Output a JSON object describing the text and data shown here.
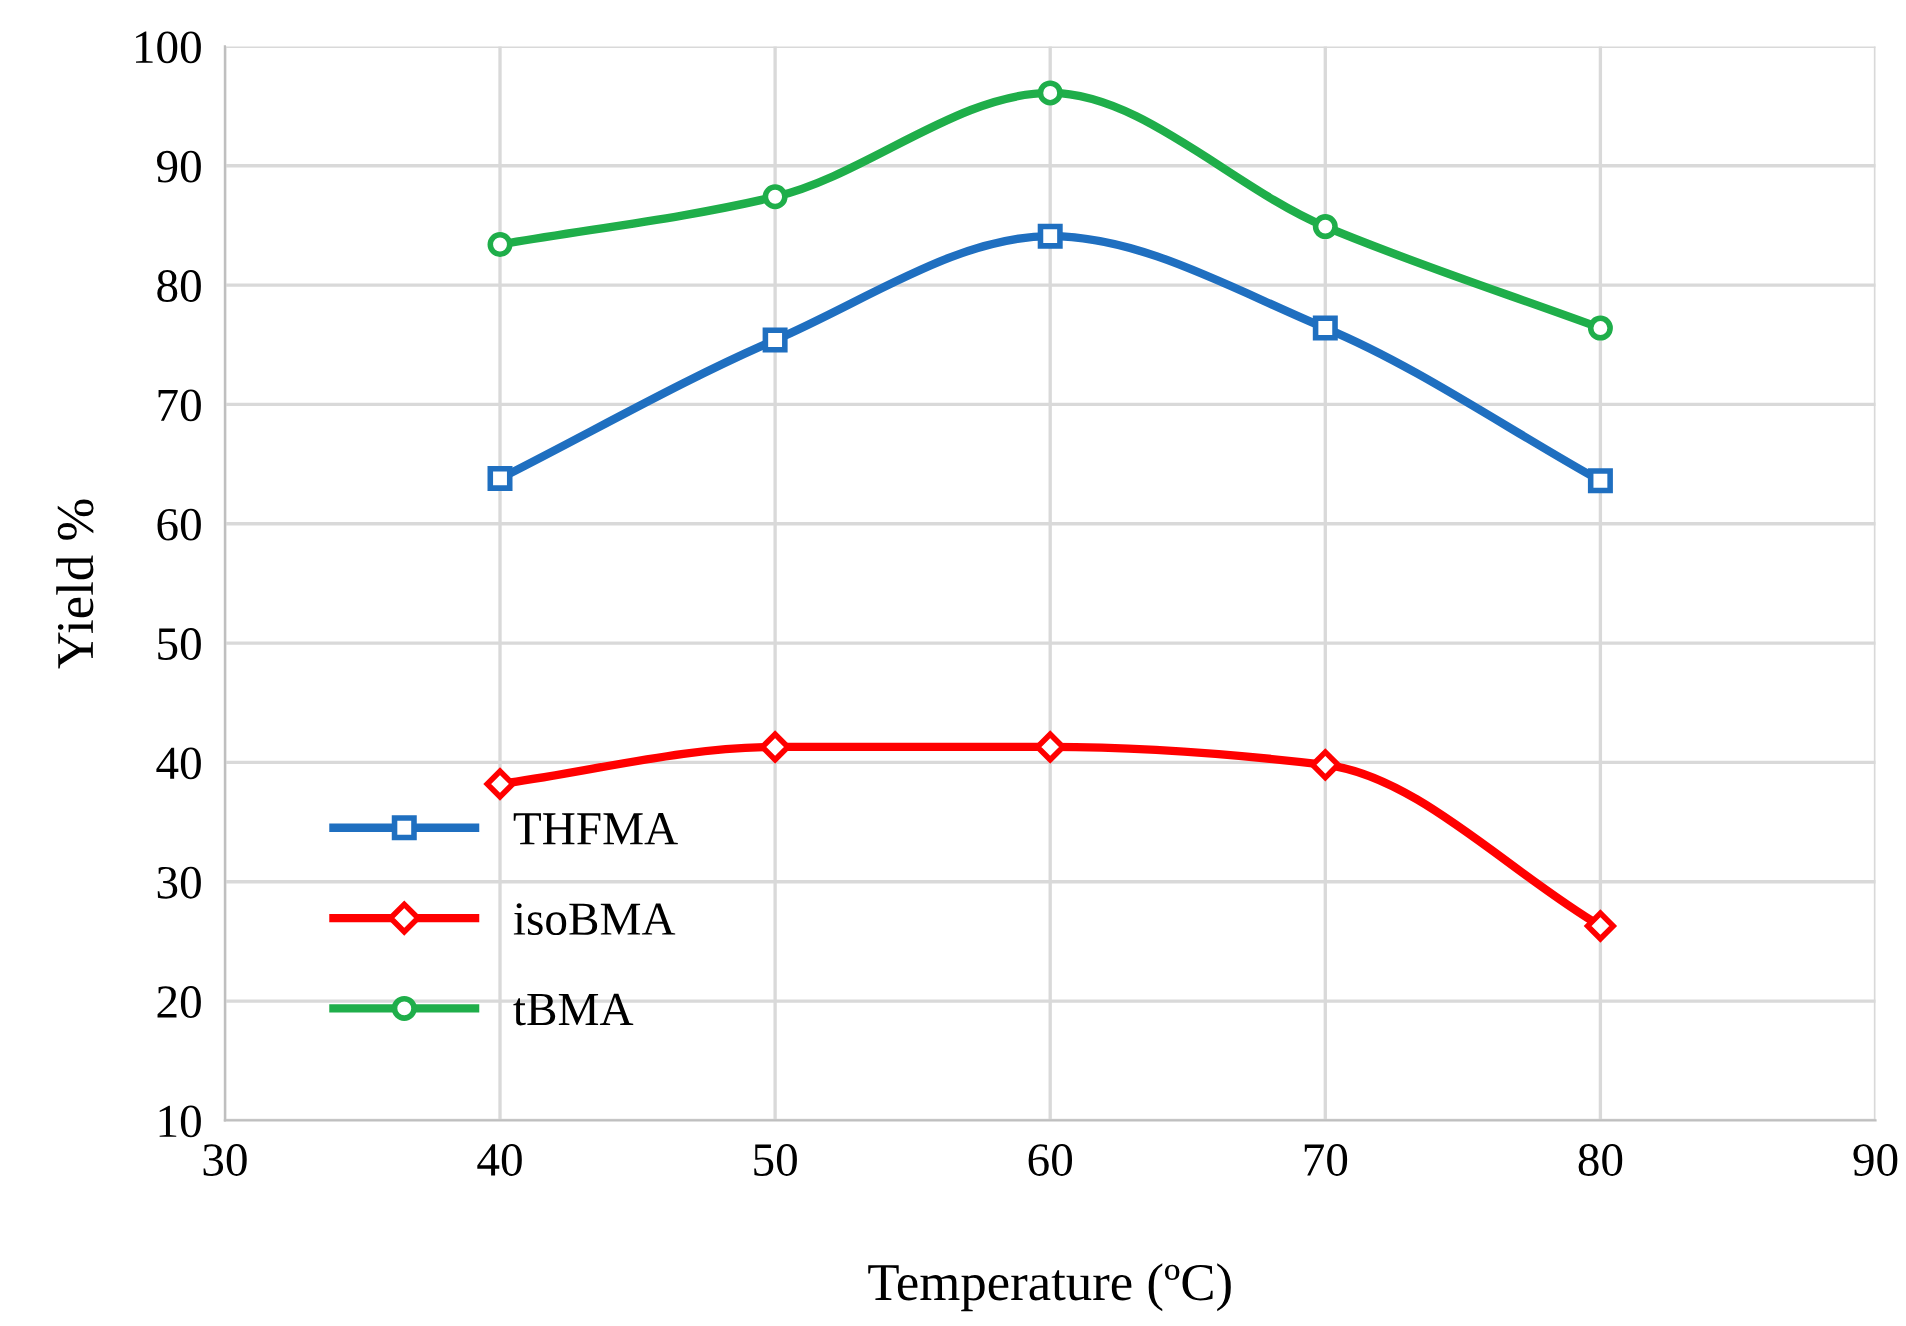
{
  "chart_data": {
    "type": "line",
    "xlabel": "Temperature (ºC)",
    "ylabel": "Yield %",
    "x": [
      40,
      50,
      60,
      70,
      80
    ],
    "series": [
      {
        "name": "THFMA",
        "color": "#1f6fc0",
        "marker": "square",
        "values": [
          63.8,
          75.4,
          84.1,
          76.4,
          63.6
        ]
      },
      {
        "name": "isoBMA",
        "color": "#ff0000",
        "marker": "diamond",
        "values": [
          38.2,
          41.3,
          41.3,
          39.8,
          26.3
        ]
      },
      {
        "name": "tBMA",
        "color": "#1fae4a",
        "marker": "circle",
        "values": [
          83.4,
          87.4,
          96.1,
          84.9,
          76.4
        ]
      }
    ],
    "xlim": [
      30,
      90
    ],
    "xticks": [
      30,
      40,
      50,
      60,
      70,
      80,
      90
    ],
    "ylim": [
      10,
      100
    ],
    "yticks": [
      10,
      20,
      30,
      40,
      50,
      60,
      70,
      80,
      90,
      100
    ],
    "grid": true,
    "legend": "bottom left"
  }
}
